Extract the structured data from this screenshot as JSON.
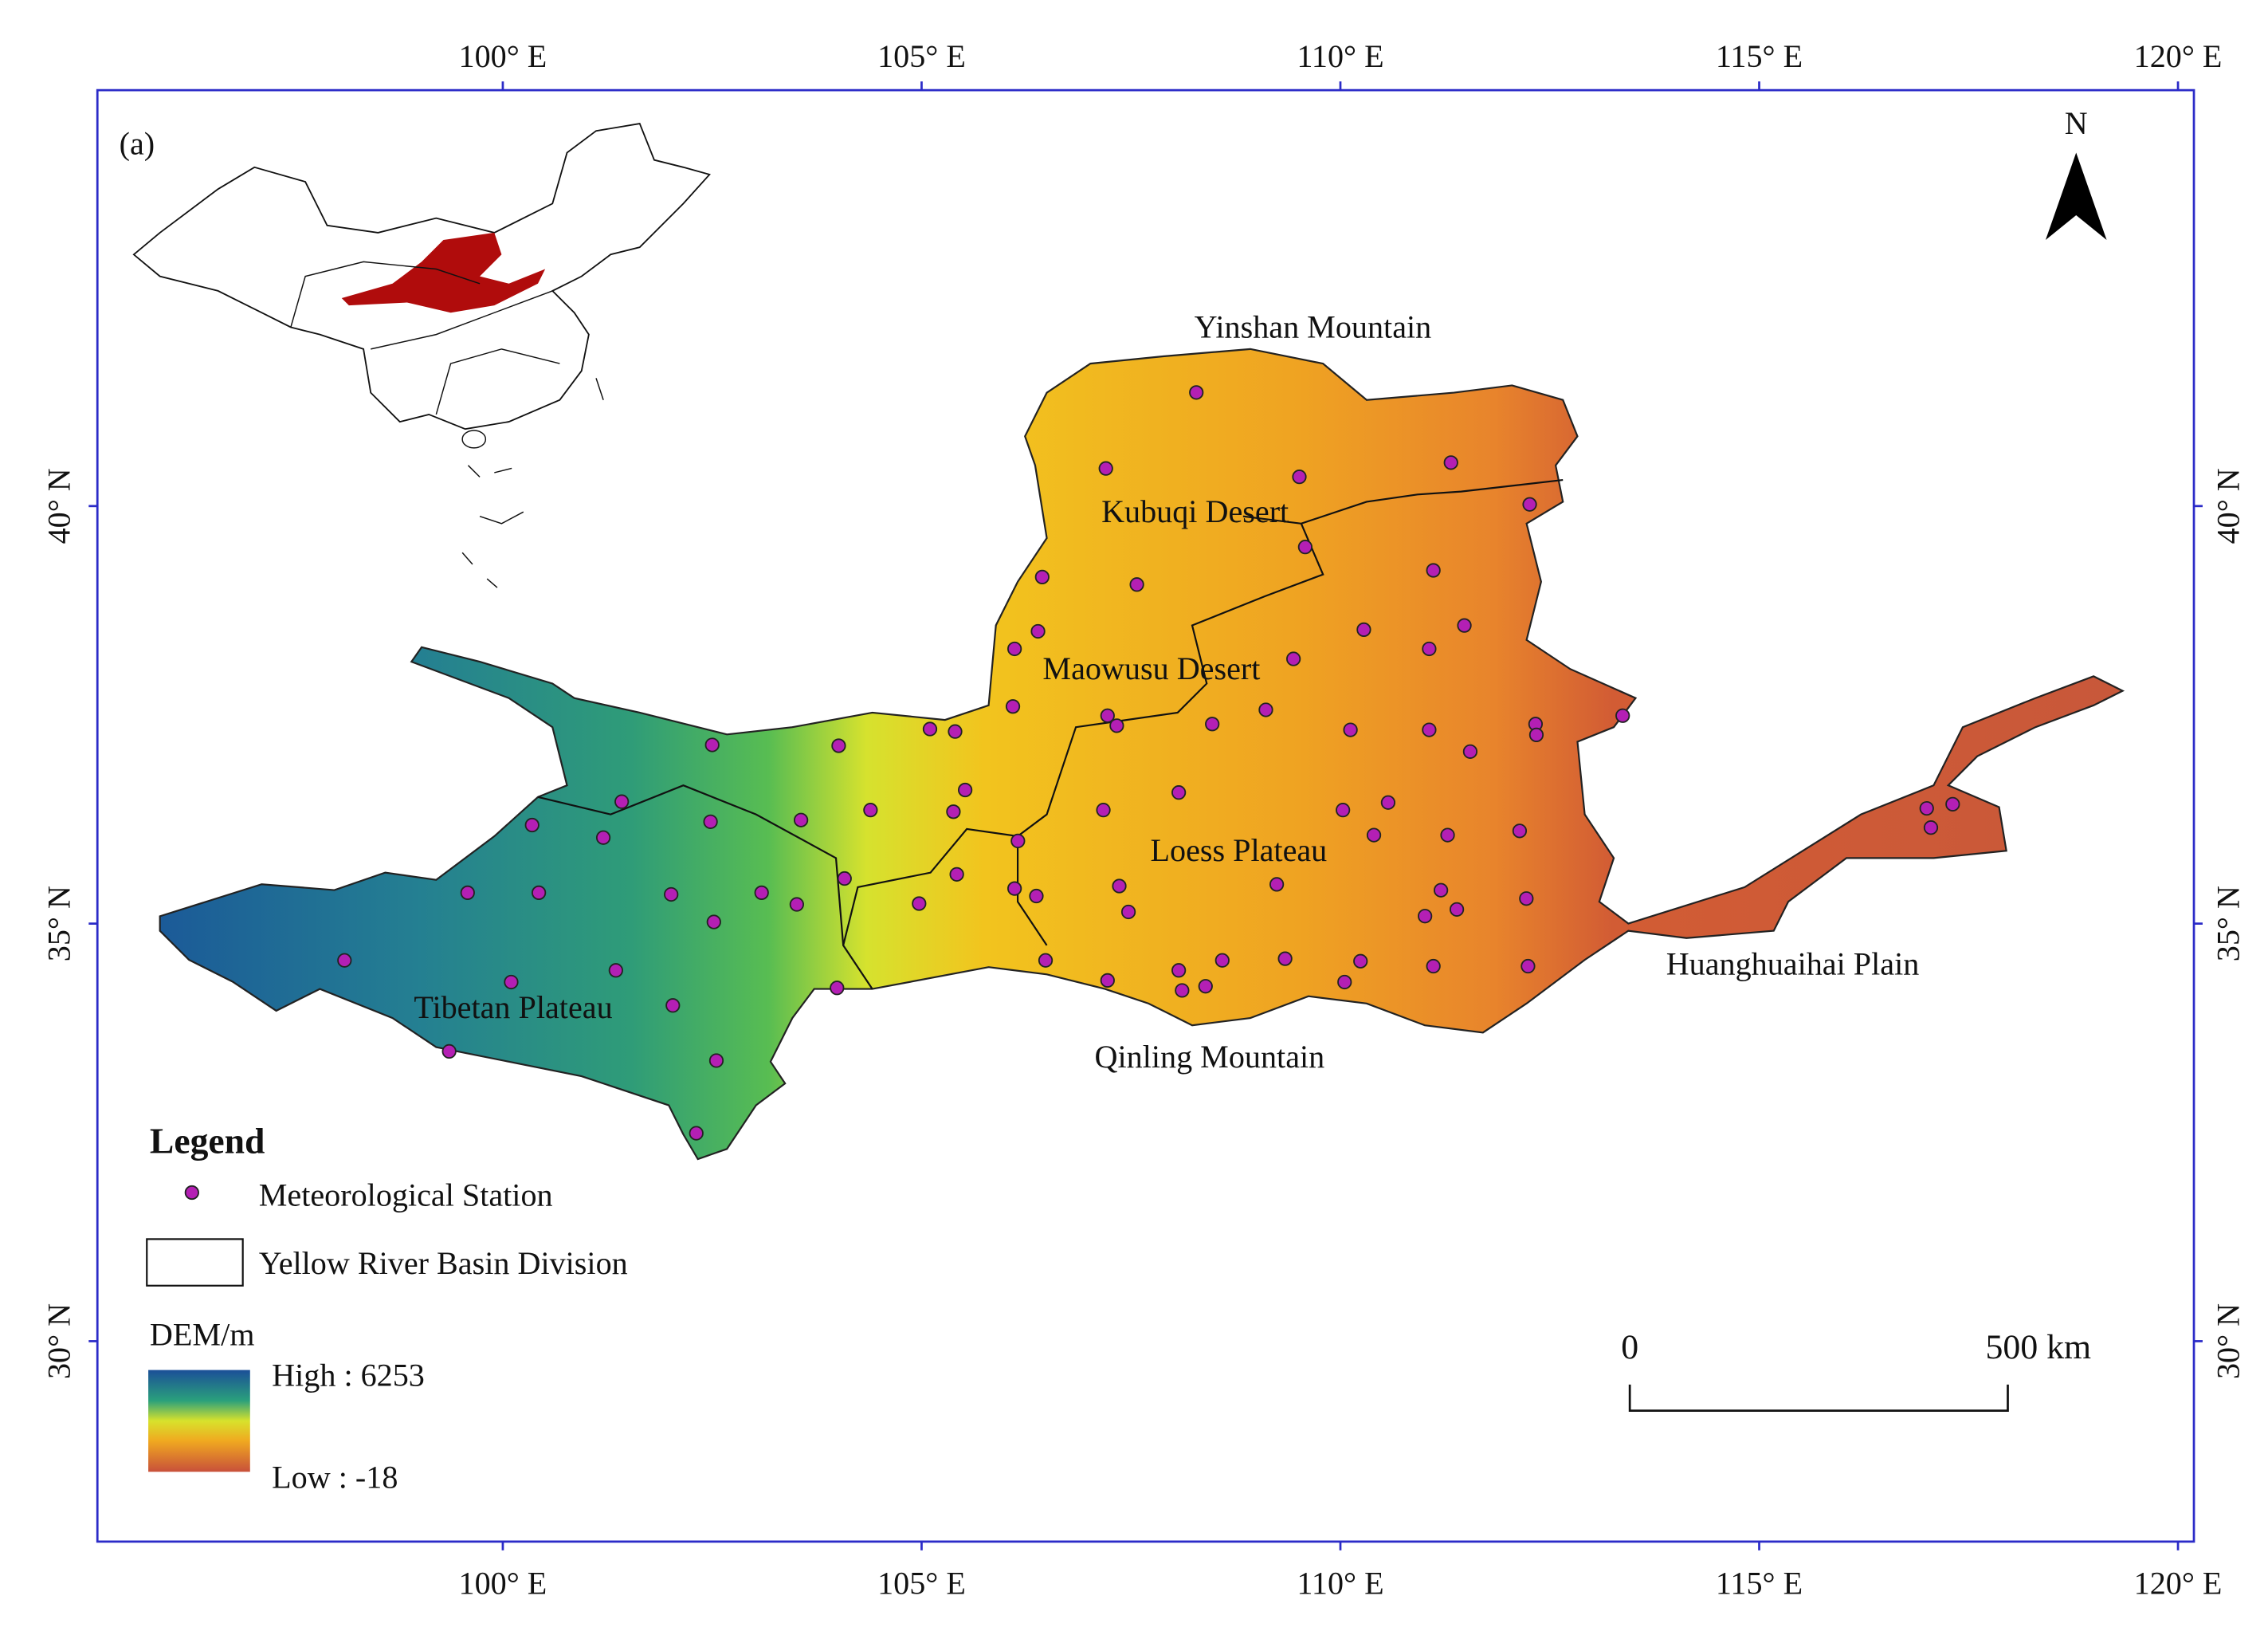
{
  "map": {
    "panel_label": "(a)",
    "lonlim": [
      95.16,
      120.19
    ],
    "latlim": [
      27.6,
      44.98
    ],
    "lon_ticks": [
      {
        "value": 100,
        "label": "100° E"
      },
      {
        "value": 105,
        "label": "105° E"
      },
      {
        "value": 110,
        "label": "110° E"
      },
      {
        "value": 115,
        "label": "115° E"
      },
      {
        "value": 120,
        "label": "120° E"
      }
    ],
    "lat_ticks": [
      {
        "value": 30,
        "label": "30° N"
      },
      {
        "value": 35,
        "label": "35° N"
      },
      {
        "value": 40,
        "label": "40° N"
      }
    ],
    "north": "N",
    "places": [
      "Yinshan Mountain",
      "Kubuqi Desert",
      "Maowusu Desert",
      "Loess Plateau",
      "Huanghuaihai Plain",
      "Qinling Mountain",
      "Tibetan Plateau"
    ],
    "stations": {
      "name": "Meteorological Station",
      "color": "#b41fb4",
      "lon": [
        108.28,
        107.2,
        109.51,
        111.32,
        112.26,
        109.58,
        111.11,
        106.44,
        107.57,
        110.28,
        111.48,
        106.39,
        106.11,
        111.06,
        109.44,
        106.09,
        107.22,
        107.33,
        108.47,
        109.11,
        110.12,
        111.06,
        112.33,
        112.34,
        113.37,
        111.55,
        105.1,
        105.4,
        104.01,
        102.5,
        105.52,
        104.39,
        105.38,
        107.17,
        108.07,
        110.03,
        110.57,
        110.4,
        111.28,
        112.14,
        117.0,
        117.31,
        117.05,
        101.42,
        100.35,
        101.2,
        102.48,
        103.56,
        106.15,
        104.08,
        105.42,
        107.36,
        109.24,
        111.2,
        99.58,
        100.43,
        102.01,
        103.09,
        103.51,
        104.97,
        106.11,
        106.37,
        107.47,
        111.01,
        111.39,
        112.22,
        102.52,
        101.35,
        98.11,
        100.1,
        103.99,
        106.48,
        107.22,
        108.07,
        108.11,
        108.39,
        108.59,
        109.34,
        110.24,
        110.05,
        111.11,
        112.24,
        102.03,
        99.36,
        102.55,
        102.31
      ],
      "lat": [
        41.36,
        40.45,
        40.35,
        40.52,
        40.02,
        39.51,
        39.23,
        39.15,
        39.06,
        38.52,
        38.57,
        38.5,
        38.29,
        38.29,
        38.17,
        37.6,
        37.49,
        37.37,
        37.39,
        37.56,
        37.32,
        37.32,
        37.39,
        37.26,
        37.49,
        37.06,
        37.33,
        37.3,
        37.13,
        37.14,
        36.6,
        36.36,
        36.34,
        36.36,
        36.57,
        36.36,
        36.45,
        36.06,
        36.06,
        36.11,
        36.38,
        36.43,
        36.15,
        36.46,
        36.18,
        36.03,
        36.22,
        36.24,
        35.99,
        35.54,
        35.59,
        35.45,
        35.47,
        35.4,
        35.37,
        35.37,
        35.35,
        35.37,
        35.23,
        35.24,
        35.42,
        35.33,
        35.14,
        35.09,
        35.17,
        35.3,
        35.02,
        34.44,
        34.56,
        34.3,
        34.23,
        34.56,
        34.32,
        34.44,
        34.2,
        34.25,
        34.56,
        34.58,
        34.55,
        34.3,
        34.49,
        34.49,
        34.02,
        33.47,
        33.36,
        32.49
      ]
    },
    "legend": {
      "title": "Legend",
      "basin": "Yellow River Basin Division",
      "dem_title": "DEM/m",
      "dem_high": "High : 6253",
      "dem_low": "Low : -18"
    },
    "scale_bar": {
      "start": "0",
      "end": "500 km"
    }
  }
}
